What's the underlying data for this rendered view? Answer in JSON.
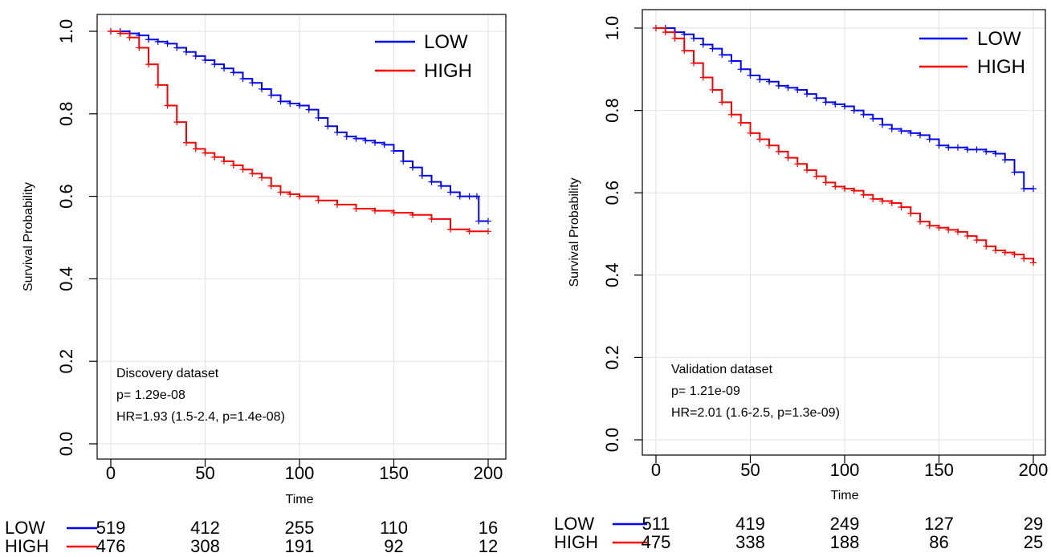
{
  "chart_data": [
    {
      "type": "line",
      "ylabel": "Survival Probability",
      "xlabel": "Time",
      "xlim": [
        0,
        200
      ],
      "ylim": [
        0,
        1
      ],
      "x_ticks": [
        "0",
        "50",
        "100",
        "150",
        "200"
      ],
      "y_ticks": [
        "0.0",
        "0.2",
        "0.4",
        "0.6",
        "0.8",
        "1.0"
      ],
      "grid": true,
      "legend": "top-right",
      "annotations": [
        "Discovery dataset",
        "p= 1.29e-08",
        "HR=1.93 (1.5-2.4, p=1.4e-08)"
      ],
      "series": [
        {
          "name": "LOW",
          "color": "#0000ff",
          "x": [
            0,
            5,
            10,
            15,
            20,
            25,
            30,
            35,
            40,
            45,
            50,
            55,
            60,
            65,
            70,
            75,
            80,
            85,
            90,
            95,
            100,
            105,
            110,
            115,
            120,
            125,
            130,
            135,
            140,
            145,
            150,
            155,
            160,
            165,
            170,
            175,
            180,
            185,
            190,
            194,
            195,
            200
          ],
          "y": [
            1.0,
            1.0,
            0.995,
            0.99,
            0.98,
            0.975,
            0.97,
            0.96,
            0.95,
            0.94,
            0.93,
            0.92,
            0.91,
            0.9,
            0.885,
            0.875,
            0.86,
            0.845,
            0.83,
            0.825,
            0.82,
            0.81,
            0.79,
            0.77,
            0.755,
            0.745,
            0.74,
            0.735,
            0.73,
            0.725,
            0.71,
            0.685,
            0.67,
            0.65,
            0.635,
            0.625,
            0.61,
            0.6,
            0.6,
            0.6,
            0.54,
            0.54
          ]
        },
        {
          "name": "HIGH",
          "color": "#ff0000",
          "x": [
            0,
            5,
            10,
            15,
            20,
            25,
            30,
            35,
            40,
            45,
            50,
            55,
            60,
            65,
            70,
            75,
            80,
            85,
            90,
            95,
            100,
            110,
            120,
            130,
            140,
            150,
            160,
            170,
            180,
            190,
            200
          ],
          "y": [
            1.0,
            0.995,
            0.985,
            0.96,
            0.92,
            0.87,
            0.82,
            0.78,
            0.73,
            0.715,
            0.705,
            0.695,
            0.685,
            0.675,
            0.665,
            0.655,
            0.645,
            0.625,
            0.61,
            0.605,
            0.6,
            0.59,
            0.58,
            0.57,
            0.565,
            0.56,
            0.555,
            0.545,
            0.52,
            0.515,
            0.515
          ]
        }
      ],
      "risk_table": {
        "LOW": [
          "519",
          "412",
          "255",
          "110",
          "16"
        ],
        "HIGH": [
          "476",
          "308",
          "191",
          "92",
          "12"
        ]
      }
    },
    {
      "type": "line",
      "ylabel": "Survival Probability",
      "xlabel": "Time",
      "xlim": [
        0,
        200
      ],
      "ylim": [
        0,
        1
      ],
      "x_ticks": [
        "0",
        "50",
        "100",
        "150",
        "200"
      ],
      "y_ticks": [
        "0.0",
        "0.2",
        "0.4",
        "0.6",
        "0.8",
        "1.0"
      ],
      "grid": true,
      "legend": "top-right",
      "annotations": [
        "Validation dataset",
        "p= 1.21e-09",
        "HR=2.01 (1.6-2.5, p=1.3e-09)"
      ],
      "series": [
        {
          "name": "LOW",
          "color": "#0000ff",
          "x": [
            0,
            5,
            10,
            15,
            20,
            25,
            30,
            35,
            40,
            45,
            50,
            55,
            60,
            65,
            70,
            75,
            80,
            85,
            90,
            95,
            100,
            105,
            110,
            115,
            120,
            125,
            130,
            135,
            140,
            145,
            150,
            155,
            160,
            165,
            170,
            175,
            180,
            185,
            190,
            195,
            200
          ],
          "y": [
            1.0,
            1.0,
            0.99,
            0.985,
            0.975,
            0.96,
            0.95,
            0.935,
            0.92,
            0.9,
            0.885,
            0.875,
            0.87,
            0.86,
            0.855,
            0.85,
            0.84,
            0.83,
            0.82,
            0.815,
            0.81,
            0.8,
            0.79,
            0.78,
            0.765,
            0.755,
            0.75,
            0.745,
            0.74,
            0.73,
            0.715,
            0.71,
            0.71,
            0.705,
            0.705,
            0.7,
            0.695,
            0.68,
            0.65,
            0.61,
            0.61
          ]
        },
        {
          "name": "HIGH",
          "color": "#ff0000",
          "x": [
            0,
            5,
            10,
            15,
            20,
            25,
            30,
            35,
            40,
            45,
            50,
            55,
            60,
            65,
            70,
            75,
            80,
            85,
            90,
            95,
            100,
            105,
            110,
            115,
            120,
            125,
            130,
            135,
            140,
            145,
            150,
            155,
            160,
            165,
            170,
            175,
            180,
            185,
            190,
            195,
            200
          ],
          "y": [
            1.0,
            0.99,
            0.975,
            0.945,
            0.915,
            0.88,
            0.85,
            0.82,
            0.79,
            0.77,
            0.745,
            0.73,
            0.715,
            0.7,
            0.685,
            0.67,
            0.655,
            0.64,
            0.625,
            0.615,
            0.61,
            0.605,
            0.595,
            0.585,
            0.58,
            0.575,
            0.565,
            0.55,
            0.53,
            0.52,
            0.515,
            0.51,
            0.505,
            0.495,
            0.485,
            0.47,
            0.46,
            0.455,
            0.45,
            0.44,
            0.43
          ]
        }
      ],
      "risk_table": {
        "LOW": [
          "511",
          "419",
          "249",
          "127",
          "29"
        ],
        "HIGH": [
          "475",
          "338",
          "188",
          "86",
          "25"
        ]
      }
    }
  ]
}
